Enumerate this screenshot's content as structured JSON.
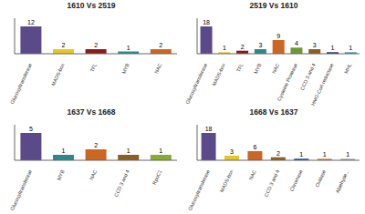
{
  "chart_data": [
    {
      "type": "bar",
      "title": "1610 Vs 2519",
      "categories": [
        "Glucosyltransferase",
        "MADS-box",
        "TFL",
        "MYB",
        "NAC"
      ],
      "values": [
        12,
        2,
        2,
        1,
        2
      ],
      "colors": [
        "#5b4a8a",
        "#e8c820",
        "#8b1a1a",
        "#2a8a8a",
        "#cc6620"
      ],
      "ylim": [
        0,
        15.6
      ],
      "grid": false,
      "data_labels": true,
      "tick_labels": "x"
    },
    {
      "type": "bar",
      "title": "2519 Vs 1610",
      "categories": [
        "Glucosyltransferase",
        "MADS-box",
        "TFL",
        "MYB",
        "NAC",
        "Cysteine Protease",
        "CCD 3 and 4",
        "HMG-CoA reductase",
        "MHL"
      ],
      "values": [
        18,
        1,
        2,
        3,
        9,
        4,
        3,
        1,
        1
      ],
      "colors": [
        "#5b4a8a",
        "#e8c820",
        "#8b1a1a",
        "#2a8a8a",
        "#cc6620",
        "#6a9a30",
        "#8b6020",
        "#1a2a5a",
        "#3a9aaa"
      ],
      "ylim": [
        0,
        23.4
      ],
      "grid": false,
      "data_labels": true,
      "tick_labels": "x"
    },
    {
      "type": "bar",
      "title": "1637 Vs 1668",
      "categories": [
        "Glucosyltransferase",
        "MYB",
        "NAC",
        "CCD 3 and 4",
        "RpoC1"
      ],
      "values": [
        5,
        1,
        2,
        1,
        1
      ],
      "colors": [
        "#5b4a8a",
        "#2a8a8a",
        "#cc6620",
        "#8b6020",
        "#8aaa30"
      ],
      "ylim": [
        0,
        6.5
      ],
      "grid": false,
      "data_labels": true,
      "tick_labels": "x"
    },
    {
      "type": "bar",
      "title": "1668 Vs 1637",
      "categories": [
        "Glucosyltransferase",
        "MADS-box",
        "NAC",
        "CCD 3 and 4",
        "Chromase",
        "Oxidase",
        "Aldehyde..."
      ],
      "values": [
        18,
        3,
        6,
        2,
        1,
        1,
        1
      ],
      "colors": [
        "#5b4a8a",
        "#e8c820",
        "#cc6620",
        "#8b6020",
        "#1a3a8a",
        "#cc8830",
        "#aaaaaa"
      ],
      "ylim": [
        0,
        23.4
      ],
      "grid": false,
      "data_labels": true,
      "tick_labels": "x"
    }
  ]
}
